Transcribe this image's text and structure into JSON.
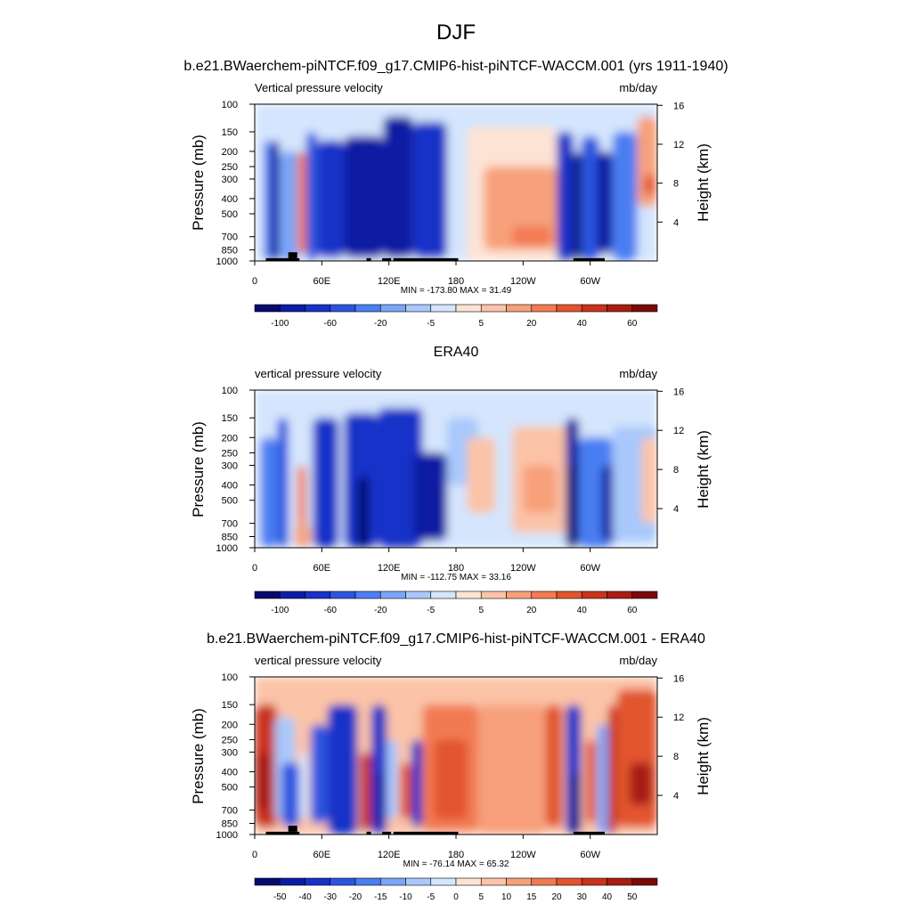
{
  "page": {
    "season_title": "DJF"
  },
  "colors": {
    "main_palette": [
      "#050a6e",
      "#0b1ea3",
      "#1732c8",
      "#2b55e0",
      "#4a7ef2",
      "#7aa6f7",
      "#a9c8fb",
      "#d4e5fd",
      "#fde3d4",
      "#fbc3a7",
      "#f7a07a",
      "#f27a52",
      "#e2542e",
      "#c9321c",
      "#a81d12",
      "#7a0a08"
    ],
    "diff_palette": [
      "#050a6e",
      "#0b1ea3",
      "#1732c8",
      "#2b55e0",
      "#4a7ef2",
      "#7aa6f7",
      "#a9c8fb",
      "#d4e5fd",
      "#fde3d4",
      "#fbc3a7",
      "#f7a07a",
      "#f27a52",
      "#e2542e",
      "#c9321c",
      "#a81d12",
      "#7a0a08"
    ]
  },
  "chart_data": [
    {
      "type": "heatmap",
      "title": "b.e21.BWaerchem-piNTCF.f09_g17.CMIP6-hist-piNTCF-WACCM.001 (yrs 1911-1940)",
      "left_label": "Vertical pressure velocity",
      "right_label": "mb/day",
      "ylabel": "Pressure (mb)",
      "ylabel_right": "Height (km)",
      "x_ticks": [
        "0",
        "60E",
        "120E",
        "180",
        "120W",
        "60W"
      ],
      "x_range": [
        0,
        360
      ],
      "y_ticks": [
        "100",
        "150",
        "200",
        "250",
        "300",
        "400",
        "500",
        "700",
        "850",
        "1000"
      ],
      "y_range_mb": [
        1000,
        100
      ],
      "y_scale": "log",
      "right_ticks": [
        "16",
        "12",
        "8",
        "4"
      ],
      "stats": "MIN = -173.80  MAX =  31.49",
      "min": -173.8,
      "max": 31.49,
      "land_mask": true,
      "colorbar_labels": [
        "-100",
        "-60",
        "-20",
        "-5",
        "5",
        "20",
        "40",
        "60"
      ]
    },
    {
      "type": "heatmap",
      "title": "ERA40",
      "left_label": "vertical pressure velocity",
      "right_label": "mb/day",
      "ylabel": "Pressure (mb)",
      "ylabel_right": "Height (km)",
      "x_ticks": [
        "0",
        "60E",
        "120E",
        "180",
        "120W",
        "60W"
      ],
      "x_range": [
        0,
        360
      ],
      "y_ticks": [
        "100",
        "150",
        "200",
        "250",
        "300",
        "400",
        "500",
        "700",
        "850",
        "1000"
      ],
      "y_range_mb": [
        1000,
        100
      ],
      "y_scale": "log",
      "right_ticks": [
        "16",
        "12",
        "8",
        "4"
      ],
      "stats": "MIN = -112.75  MAX =  33.16",
      "min": -112.75,
      "max": 33.16,
      "land_mask": false,
      "colorbar_labels": [
        "-100",
        "-60",
        "-20",
        "-5",
        "5",
        "20",
        "40",
        "60"
      ]
    },
    {
      "type": "heatmap",
      "title": "b.e21.BWaerchem-piNTCF.f09_g17.CMIP6-hist-piNTCF-WACCM.001 - ERA40",
      "left_label": "vertical pressure velocity",
      "right_label": "mb/day",
      "ylabel": "Pressure (mb)",
      "ylabel_right": "Height (km)",
      "x_ticks": [
        "0",
        "60E",
        "120E",
        "180",
        "120W",
        "60W"
      ],
      "x_range": [
        0,
        360
      ],
      "y_ticks": [
        "100",
        "150",
        "200",
        "250",
        "300",
        "400",
        "500",
        "700",
        "850",
        "1000"
      ],
      "y_range_mb": [
        1000,
        100
      ],
      "y_scale": "log",
      "right_ticks": [
        "16",
        "12",
        "8",
        "4"
      ],
      "stats": "MIN = -76.14  MAX =  65.32",
      "min": -76.14,
      "max": 65.32,
      "land_mask": true,
      "colorbar_labels": [
        "-50",
        "-40",
        "-30",
        "-20",
        "-15",
        "-10",
        "-5",
        "0",
        "5",
        "10",
        "15",
        "20",
        "30",
        "40",
        "50"
      ]
    }
  ]
}
